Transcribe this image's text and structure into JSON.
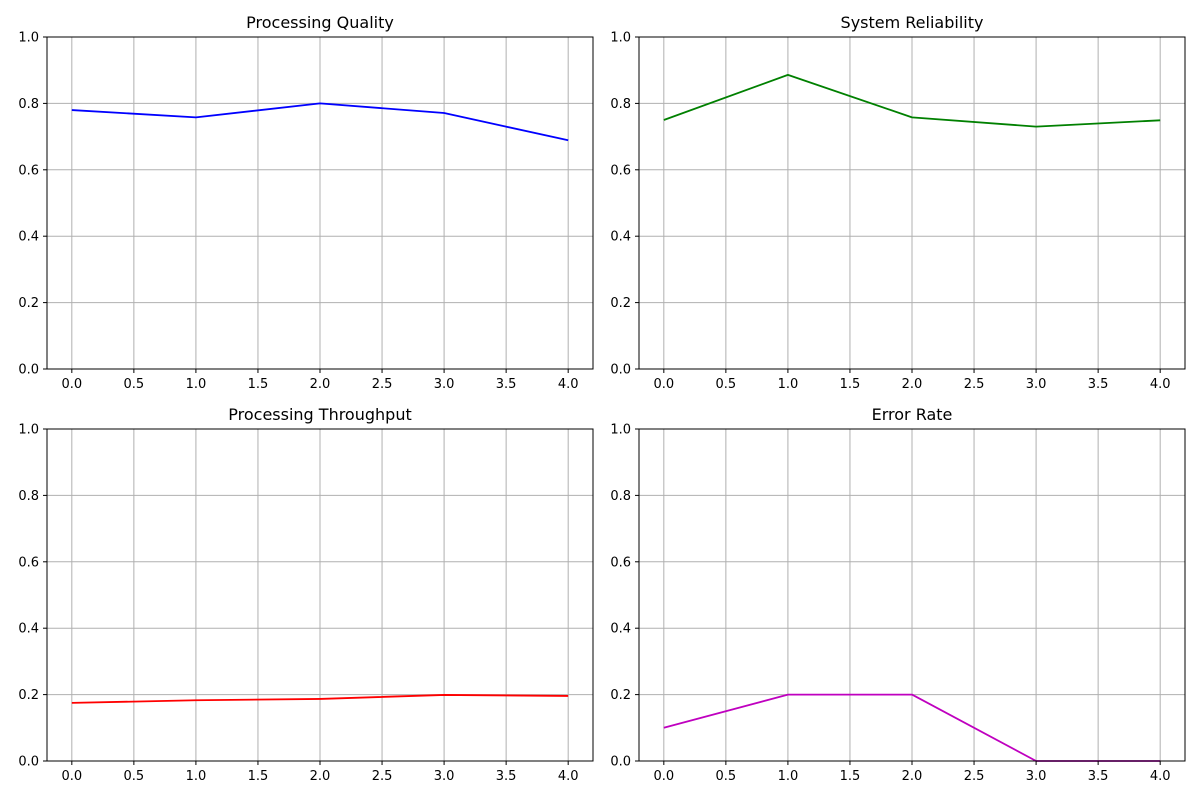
{
  "chart_data": [
    {
      "type": "line",
      "title": "Processing Quality",
      "x": [
        0,
        1,
        2,
        3,
        4
      ],
      "values": [
        0.78,
        0.758,
        0.8,
        0.771,
        0.689
      ],
      "color": "#0000ff",
      "xlim": [
        -0.2,
        4.2
      ],
      "ylim": [
        0,
        1
      ],
      "xticks": [
        0,
        0.5,
        1,
        1.5,
        2,
        2.5,
        3,
        3.5,
        4
      ],
      "xtick_labels": [
        "0.0",
        "0.5",
        "1.0",
        "1.5",
        "2.0",
        "2.5",
        "3.0",
        "3.5",
        "4.0"
      ],
      "yticks": [
        0,
        0.2,
        0.4,
        0.6,
        0.8,
        1
      ],
      "ytick_labels": [
        "0.0",
        "0.2",
        "0.4",
        "0.6",
        "0.8",
        "1.0"
      ],
      "grid": true
    },
    {
      "type": "line",
      "title": "System Reliability",
      "x": [
        0,
        1,
        2,
        3,
        4
      ],
      "values": [
        0.75,
        0.886,
        0.758,
        0.73,
        0.749
      ],
      "color": "#008000",
      "xlim": [
        -0.2,
        4.2
      ],
      "ylim": [
        0,
        1
      ],
      "xticks": [
        0,
        0.5,
        1,
        1.5,
        2,
        2.5,
        3,
        3.5,
        4
      ],
      "xtick_labels": [
        "0.0",
        "0.5",
        "1.0",
        "1.5",
        "2.0",
        "2.5",
        "3.0",
        "3.5",
        "4.0"
      ],
      "yticks": [
        0,
        0.2,
        0.4,
        0.6,
        0.8,
        1
      ],
      "ytick_labels": [
        "0.0",
        "0.2",
        "0.4",
        "0.6",
        "0.8",
        "1.0"
      ],
      "grid": true
    },
    {
      "type": "line",
      "title": "Processing Throughput",
      "x": [
        0,
        1,
        2,
        3,
        4
      ],
      "values": [
        0.175,
        0.183,
        0.187,
        0.199,
        0.196
      ],
      "color": "#ff0000",
      "xlim": [
        -0.2,
        4.2
      ],
      "ylim": [
        0,
        1
      ],
      "xticks": [
        0,
        0.5,
        1,
        1.5,
        2,
        2.5,
        3,
        3.5,
        4
      ],
      "xtick_labels": [
        "0.0",
        "0.5",
        "1.0",
        "1.5",
        "2.0",
        "2.5",
        "3.0",
        "3.5",
        "4.0"
      ],
      "yticks": [
        0,
        0.2,
        0.4,
        0.6,
        0.8,
        1
      ],
      "ytick_labels": [
        "0.0",
        "0.2",
        "0.4",
        "0.6",
        "0.8",
        "1.0"
      ],
      "grid": true
    },
    {
      "type": "line",
      "title": "Error Rate",
      "x": [
        0,
        1,
        2,
        3,
        4
      ],
      "values": [
        0.1,
        0.2,
        0.2,
        0.0,
        0.0
      ],
      "color": "#bf00bf",
      "xlim": [
        -0.2,
        4.2
      ],
      "ylim": [
        0,
        1
      ],
      "xticks": [
        0,
        0.5,
        1,
        1.5,
        2,
        2.5,
        3,
        3.5,
        4
      ],
      "xtick_labels": [
        "0.0",
        "0.5",
        "1.0",
        "1.5",
        "2.0",
        "2.5",
        "3.0",
        "3.5",
        "4.0"
      ],
      "yticks": [
        0,
        0.2,
        0.4,
        0.6,
        0.8,
        1
      ],
      "ytick_labels": [
        "0.0",
        "0.2",
        "0.4",
        "0.6",
        "0.8",
        "1.0"
      ],
      "grid": true
    }
  ]
}
